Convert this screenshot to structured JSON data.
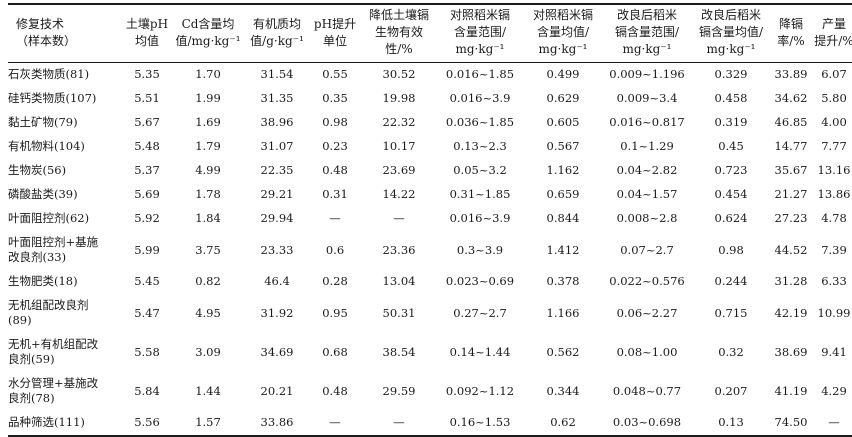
{
  "table": {
    "headers": [
      [
        "修复技术",
        "（样本数）"
      ],
      [
        "土壤pH",
        "均值"
      ],
      [
        "Cd含量均",
        "值/mg·kg⁻¹"
      ],
      [
        "有机质均",
        "值/g·kg⁻¹"
      ],
      [
        "pH提升",
        "单位"
      ],
      [
        "降低土壤镉",
        "生物有效",
        "性/%"
      ],
      [
        "对照稻米镉",
        "含量范围/",
        "mg·kg⁻¹"
      ],
      [
        "对照稻米镉",
        "含量均值/",
        "mg·kg⁻¹"
      ],
      [
        "改良后稻米",
        "镉含量范围/",
        "mg·kg⁻¹"
      ],
      [
        "改良后稻米",
        "镉含量均值/",
        "mg·kg⁻¹"
      ],
      [
        "降镉",
        "率/%"
      ],
      [
        "产量",
        "提升/%"
      ]
    ],
    "rows": [
      [
        [
          "石灰类物质(81)"
        ],
        "5.35",
        "1.70",
        "31.54",
        "0.55",
        "30.52",
        "0.016~1.85",
        "0.499",
        "0.009~1.196",
        "0.329",
        "33.89",
        "6.07"
      ],
      [
        [
          "硅钙类物质(107)"
        ],
        "5.51",
        "1.99",
        "31.35",
        "0.35",
        "19.98",
        "0.016~3.9",
        "0.629",
        "0.009~3.4",
        "0.458",
        "34.62",
        "5.80"
      ],
      [
        [
          "黏土矿物(79)"
        ],
        "5.67",
        "1.69",
        "38.96",
        "0.98",
        "22.32",
        "0.036~1.85",
        "0.605",
        "0.016~0.817",
        "0.319",
        "46.85",
        "4.00"
      ],
      [
        [
          "有机物料(104)"
        ],
        "5.48",
        "1.79",
        "31.07",
        "0.23",
        "10.17",
        "0.13~2.3",
        "0.567",
        "0.1~1.29",
        "0.45",
        "14.77",
        "7.77"
      ],
      [
        [
          "生物炭(56)"
        ],
        "5.37",
        "4.99",
        "22.35",
        "0.48",
        "23.69",
        "0.05~3.2",
        "1.162",
        "0.04~2.82",
        "0.723",
        "35.67",
        "13.16"
      ],
      [
        [
          "磷酸盐类(39)"
        ],
        "5.69",
        "1.78",
        "29.21",
        "0.31",
        "14.22",
        "0.31~1.85",
        "0.659",
        "0.04~1.57",
        "0.454",
        "21.27",
        "13.86"
      ],
      [
        [
          "叶面阻控剂(62)"
        ],
        "5.92",
        "1.84",
        "29.94",
        "—",
        "—",
        "0.016~3.9",
        "0.844",
        "0.008~2.8",
        "0.624",
        "27.23",
        "4.78"
      ],
      [
        [
          "叶面阻控剂+基施",
          "改良剂(33)"
        ],
        "5.99",
        "3.75",
        "23.33",
        "0.6",
        "23.36",
        "0.3~3.9",
        "1.412",
        "0.07~2.7",
        "0.98",
        "44.52",
        "7.39"
      ],
      [
        [
          "生物肥类(18)"
        ],
        "5.45",
        "0.82",
        "46.4",
        "0.28",
        "13.04",
        "0.023~0.69",
        "0.378",
        "0.022~0.576",
        "0.244",
        "31.28",
        "6.33"
      ],
      [
        [
          "无机组配改良剂",
          "(89)"
        ],
        "5.47",
        "4.95",
        "31.92",
        "0.95",
        "50.31",
        "0.27~2.7",
        "1.166",
        "0.06~2.27",
        "0.715",
        "42.19",
        "10.99"
      ],
      [
        [
          "无机+有机组配改",
          "良剂(59)"
        ],
        "5.58",
        "3.09",
        "34.69",
        "0.68",
        "38.54",
        "0.14~1.44",
        "0.562",
        "0.08~1.00",
        "0.32",
        "38.69",
        "9.41"
      ],
      [
        [
          "水分管理+基施改",
          "良剂(78)"
        ],
        "5.84",
        "1.44",
        "20.21",
        "0.48",
        "29.59",
        "0.092~1.12",
        "0.344",
        "0.048~0.77",
        "0.207",
        "41.19",
        "4.29"
      ],
      [
        [
          "品种筛选(111)"
        ],
        "5.56",
        "1.57",
        "33.86",
        "—",
        "—",
        "0.16~1.53",
        "0.62",
        "0.03~0.698",
        "0.13",
        "74.50",
        "—"
      ]
    ]
  }
}
